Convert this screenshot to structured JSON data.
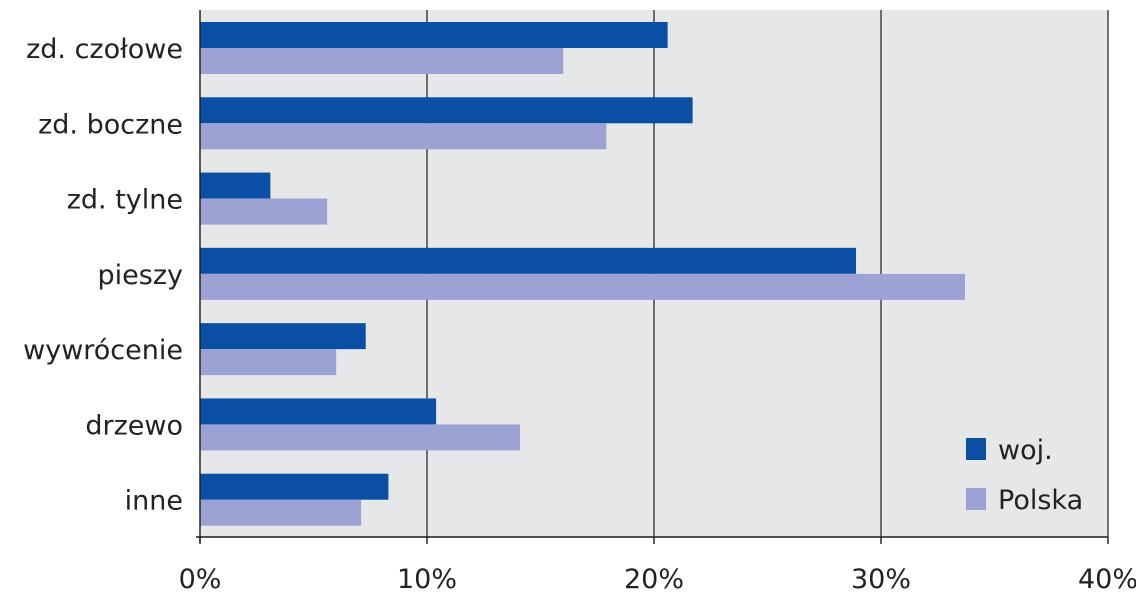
{
  "chart_data": {
    "type": "bar",
    "orientation": "horizontal",
    "categories": [
      "zd. czołowe",
      "zd. boczne",
      "zd. tylne",
      "pieszy",
      "wywrócenie",
      "drzewo",
      "inne"
    ],
    "series": [
      {
        "name": "woj.",
        "color": "#0a4fa3",
        "values": [
          20.6,
          21.7,
          3.1,
          28.9,
          7.3,
          10.4,
          8.3
        ]
      },
      {
        "name": "Polska",
        "color": "#9ca3d4",
        "values": [
          16.0,
          17.9,
          5.6,
          33.7,
          6.0,
          14.1,
          7.1
        ]
      }
    ],
    "xlim": [
      0,
      40
    ],
    "xticks": [
      0,
      10,
      20,
      30,
      40
    ],
    "xtick_labels": [
      "0%",
      "10%",
      "20%",
      "30%",
      "40%"
    ],
    "title": "",
    "xlabel": "",
    "ylabel": "",
    "grid": true,
    "legend_position": "bottom-right",
    "plot_background": "#e6e7e9"
  }
}
